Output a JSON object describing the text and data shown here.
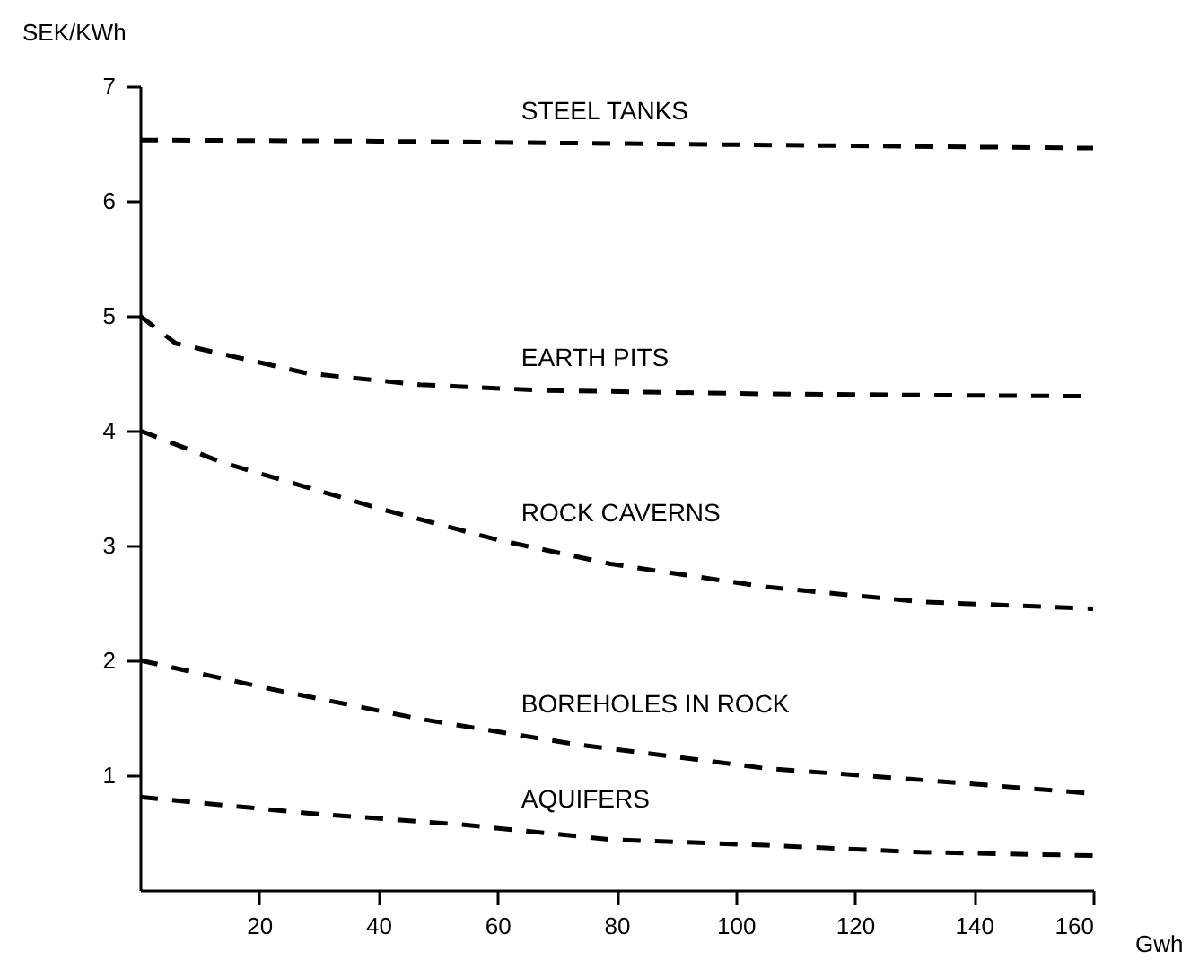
{
  "chart_data": {
    "type": "line",
    "xlabel": "Gwh",
    "ylabel": "SEK/KWh",
    "line_style": "dashed",
    "grid": false,
    "legend": false,
    "xlim": [
      0,
      160
    ],
    "xticks": [
      20,
      40,
      60,
      80,
      100,
      120,
      140,
      160
    ],
    "ylim": [
      0,
      7
    ],
    "yticks": [
      1,
      2,
      3,
      4,
      5,
      6,
      7
    ],
    "series": [
      {
        "name": "STEEL TANKS",
        "color": "#000000",
        "x": [
          0,
          40,
          80,
          120,
          160
        ],
        "values": [
          6.53,
          6.52,
          6.5,
          6.48,
          6.46
        ]
      },
      {
        "name": "EARTH PITS",
        "color": "#000000",
        "x": [
          0,
          6,
          28,
          47,
          68,
          105,
          159
        ],
        "values": [
          5.0,
          4.76,
          4.5,
          4.4,
          4.35,
          4.32,
          4.3
        ]
      },
      {
        "name": "ROCK CAVERNS",
        "color": "#000000",
        "x": [
          0,
          14,
          41,
          60,
          79,
          105,
          131,
          160
        ],
        "values": [
          4.0,
          3.72,
          3.31,
          3.05,
          2.84,
          2.64,
          2.51,
          2.45
        ]
      },
      {
        "name": "BOREHOLES IN ROCK",
        "color": "#000000",
        "x": [
          0,
          22,
          47,
          73,
          105,
          131,
          160
        ],
        "values": [
          2.0,
          1.75,
          1.49,
          1.27,
          1.06,
          0.96,
          0.84
        ]
      },
      {
        "name": "AQUIFERS",
        "color": "#000000",
        "x": [
          0,
          28,
          54,
          79,
          105,
          131,
          160
        ],
        "values": [
          0.81,
          0.67,
          0.57,
          0.44,
          0.39,
          0.33,
          0.3
        ]
      }
    ]
  }
}
